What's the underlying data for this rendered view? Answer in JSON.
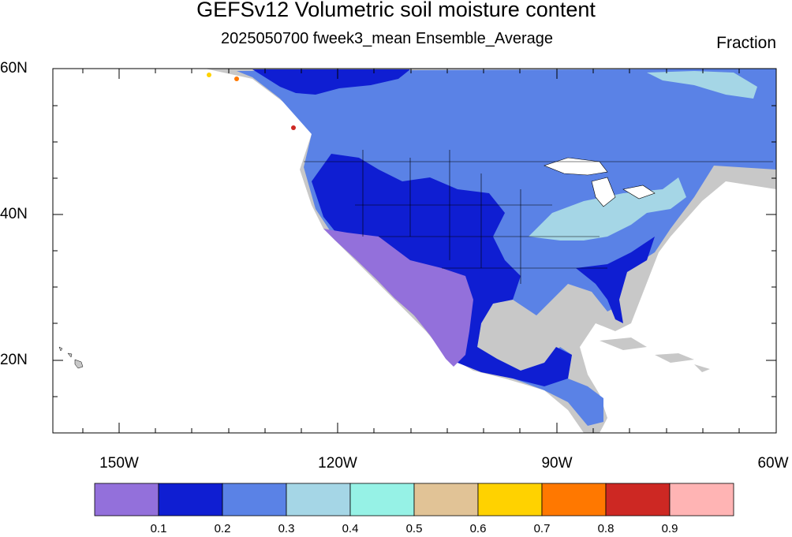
{
  "title": "GEFSv12 Volumetric soil moisture content",
  "subtitle": "2025050700 fweek3_mean Ensemble_Average",
  "units": "Fraction",
  "lat_labels": [
    "60N",
    "40N",
    "20N"
  ],
  "lon_labels": [
    "150W",
    "120W",
    "90W",
    "60W"
  ],
  "colorbar": {
    "colors": [
      "#9370DB",
      "#0F1ED2",
      "#5A82E6",
      "#A5D6E6",
      "#96F2E6",
      "#E1C396",
      "#FFD200",
      "#FF7800",
      "#CD2823",
      "#FFB4B4"
    ],
    "labels": [
      "0.1",
      "0.2",
      "0.3",
      "0.4",
      "0.5",
      "0.6",
      "0.7",
      "0.8",
      "0.9"
    ]
  }
}
